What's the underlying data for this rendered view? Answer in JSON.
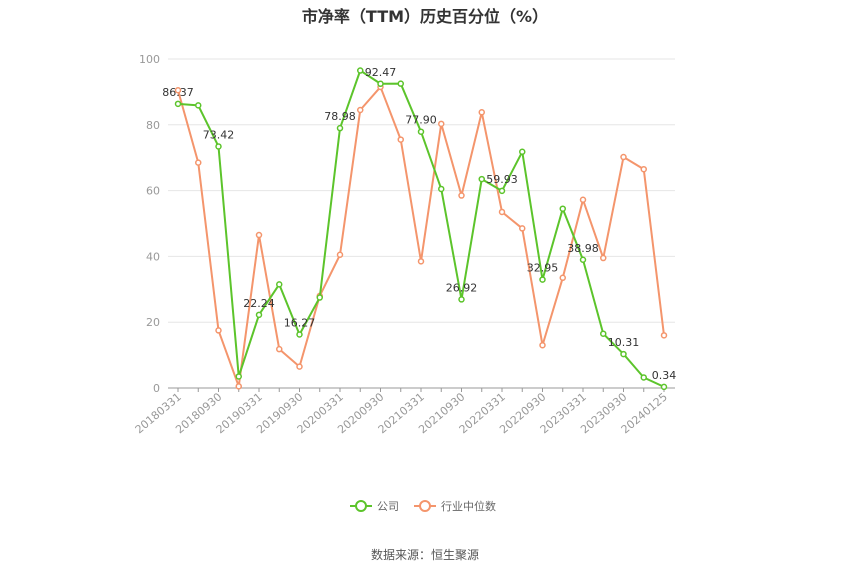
{
  "title": "市净率（TTM）历史百分位（%）",
  "source": "数据来源：恒生聚源",
  "chart_data": {
    "type": "line",
    "title": "市净率（TTM）历史百分位（%）",
    "ylim": [
      0,
      100
    ],
    "yticks": [
      0,
      20,
      40,
      60,
      80,
      100
    ],
    "grid": true,
    "legend_position": "bottom",
    "categories": [
      "20180331",
      "20180630",
      "20180930",
      "20181231",
      "20190331",
      "20190630",
      "20190930",
      "20191231",
      "20200331",
      "20200630",
      "20200930",
      "20201231",
      "20210331",
      "20210630",
      "20210930",
      "20211231",
      "20220331",
      "20220630",
      "20220930",
      "20221231",
      "20230331",
      "20230630",
      "20230930",
      "20231231",
      "20240125"
    ],
    "x_tick_labels": [
      "20180331",
      "20180930",
      "20190331",
      "20190930",
      "20200331",
      "20200930",
      "20210331",
      "20210930",
      "20220331",
      "20220930",
      "20230331",
      "20230930",
      "20240125"
    ],
    "x_tick_indices": [
      0,
      2,
      4,
      6,
      8,
      10,
      12,
      14,
      16,
      18,
      20,
      22,
      24
    ],
    "series": [
      {
        "name": "公司",
        "color": "#5cc42b",
        "values": [
          86.37,
          85.9,
          73.42,
          3.5,
          22.24,
          31.5,
          16.27,
          27.5,
          78.98,
          96.5,
          92.47,
          92.5,
          77.9,
          60.5,
          26.92,
          63.5,
          59.93,
          71.8,
          32.95,
          54.5,
          38.98,
          16.5,
          10.31,
          3.2,
          0.34
        ],
        "labels": {
          "0": "86.37",
          "2": "73.42",
          "4": "22.24",
          "6": "16.27",
          "8": "78.98",
          "10": "92.47",
          "12": "77.90",
          "14": "26.92",
          "16": "59.93",
          "18": "32.95",
          "20": "38.98",
          "22": "10.31",
          "24": "0.34"
        }
      },
      {
        "name": "行业中位数",
        "color": "#f4956c",
        "values": [
          90.5,
          68.5,
          17.5,
          0.5,
          46.5,
          11.8,
          6.5,
          28.0,
          40.5,
          84.5,
          91.5,
          75.5,
          38.5,
          80.3,
          58.5,
          83.8,
          53.5,
          48.5,
          13.0,
          33.5,
          57.2,
          39.5,
          70.2,
          66.5,
          16.0
        ]
      }
    ]
  }
}
